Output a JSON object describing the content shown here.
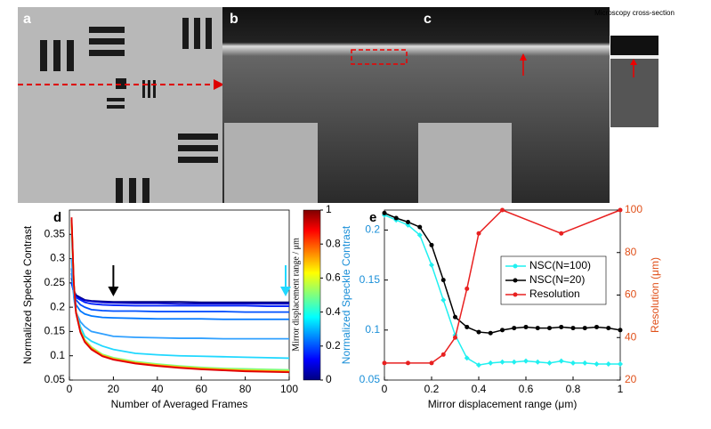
{
  "images": {
    "panels": [
      {
        "label": "a"
      },
      {
        "label": "b"
      },
      {
        "label": "c"
      }
    ],
    "inset_caption": "Microscopy cross-section"
  },
  "chart_data": [
    {
      "type": "line",
      "panel": "d",
      "xlabel": "Number of Averaged Frames",
      "ylabel": "Normalized Speckle Contrast",
      "xlim": [
        0,
        100
      ],
      "xticks": [
        0,
        20,
        40,
        60,
        80,
        100
      ],
      "ylim": [
        0.05,
        0.4
      ],
      "yticks": [
        0.05,
        0.1,
        0.15,
        0.2,
        0.25,
        0.3,
        0.35
      ],
      "x": [
        1,
        2,
        3,
        5,
        7,
        10,
        15,
        20,
        30,
        40,
        50,
        60,
        70,
        80,
        90,
        100
      ],
      "series": [
        {
          "color": "#00007f",
          "values": [
            0.26,
            0.235,
            0.225,
            0.22,
            0.215,
            0.213,
            0.212,
            0.211,
            0.211,
            0.211,
            0.211,
            0.21,
            0.21,
            0.21,
            0.21,
            0.21
          ]
        },
        {
          "color": "#0000c8",
          "values": [
            0.25,
            0.23,
            0.222,
            0.218,
            0.214,
            0.212,
            0.21,
            0.209,
            0.208,
            0.208,
            0.207,
            0.207,
            0.207,
            0.207,
            0.207,
            0.207
          ]
        },
        {
          "color": "#0020ff",
          "values": [
            0.25,
            0.23,
            0.22,
            0.215,
            0.21,
            0.207,
            0.205,
            0.204,
            0.203,
            0.203,
            0.203,
            0.203,
            0.203,
            0.203,
            0.202,
            0.202
          ]
        },
        {
          "color": "#0050ff",
          "values": [
            0.27,
            0.23,
            0.215,
            0.205,
            0.2,
            0.195,
            0.193,
            0.192,
            0.192,
            0.191,
            0.191,
            0.191,
            0.191,
            0.19,
            0.19,
            0.19
          ]
        },
        {
          "color": "#0078ff",
          "values": [
            0.28,
            0.225,
            0.205,
            0.192,
            0.186,
            0.182,
            0.179,
            0.178,
            0.177,
            0.176,
            0.176,
            0.176,
            0.175,
            0.175,
            0.175,
            0.175
          ]
        },
        {
          "color": "#30a0ff",
          "values": [
            0.3,
            0.22,
            0.19,
            0.17,
            0.16,
            0.15,
            0.145,
            0.14,
            0.138,
            0.137,
            0.136,
            0.136,
            0.135,
            0.135,
            0.135,
            0.135
          ]
        },
        {
          "color": "#20d8ff",
          "values": [
            0.35,
            0.24,
            0.19,
            0.16,
            0.14,
            0.13,
            0.12,
            0.113,
            0.105,
            0.102,
            0.1,
            0.099,
            0.098,
            0.097,
            0.096,
            0.095
          ]
        },
        {
          "color": "#7fff7f",
          "values": [
            0.37,
            0.25,
            0.19,
            0.152,
            0.133,
            0.118,
            0.103,
            0.096,
            0.088,
            0.083,
            0.079,
            0.076,
            0.074,
            0.073,
            0.072,
            0.071
          ]
        },
        {
          "color": "#ffd000",
          "values": [
            0.38,
            0.25,
            0.19,
            0.15,
            0.131,
            0.116,
            0.101,
            0.094,
            0.086,
            0.081,
            0.077,
            0.074,
            0.072,
            0.07,
            0.069,
            0.068
          ]
        },
        {
          "color": "#ff7000",
          "values": [
            0.38,
            0.25,
            0.19,
            0.15,
            0.13,
            0.115,
            0.1,
            0.093,
            0.085,
            0.08,
            0.076,
            0.073,
            0.071,
            0.069,
            0.068,
            0.067
          ]
        },
        {
          "color": "#e00000",
          "values": [
            0.385,
            0.25,
            0.188,
            0.148,
            0.128,
            0.113,
            0.099,
            0.092,
            0.084,
            0.079,
            0.075,
            0.072,
            0.07,
            0.068,
            0.067,
            0.066
          ]
        }
      ],
      "arrows": [
        {
          "x": 20,
          "color": "#000000"
        },
        {
          "x": 100,
          "color": "#20d8ff"
        }
      ],
      "colorbar": {
        "label": "Mirror displacement range / μm",
        "lim": [
          0,
          1
        ],
        "ticks": [
          0,
          0.2,
          0.4,
          0.6,
          0.8,
          1
        ]
      }
    },
    {
      "type": "line",
      "panel": "e",
      "xlabel": "Mirror displacement range (μm)",
      "ylabel": "Normalized Speckle Contrast",
      "y2label": "Resolution (μm)",
      "xlim": [
        0,
        1
      ],
      "xticks": [
        0,
        0.2,
        0.4,
        0.6,
        0.8,
        1
      ],
      "ylim": [
        0.05,
        0.22
      ],
      "yticks": [
        0.05,
        0.1,
        0.15,
        0.2
      ],
      "y2lim": [
        20,
        100
      ],
      "y2ticks": [
        20,
        40,
        60,
        80,
        100
      ],
      "legend": "upper right",
      "series": [
        {
          "name": "NSC(N=100)",
          "color": "#20f0f0",
          "marker": "diamond",
          "x": [
            0,
            0.05,
            0.1,
            0.15,
            0.2,
            0.25,
            0.3,
            0.35,
            0.4,
            0.45,
            0.5,
            0.55,
            0.6,
            0.65,
            0.7,
            0.75,
            0.8,
            0.85,
            0.9,
            0.95,
            1
          ],
          "values": [
            0.215,
            0.21,
            0.205,
            0.195,
            0.165,
            0.13,
            0.095,
            0.072,
            0.065,
            0.067,
            0.068,
            0.068,
            0.069,
            0.068,
            0.067,
            0.069,
            0.067,
            0.067,
            0.066,
            0.066,
            0.066
          ]
        },
        {
          "name": "NSC(N=20)",
          "color": "#000000",
          "marker": "circle",
          "x": [
            0,
            0.05,
            0.1,
            0.15,
            0.2,
            0.25,
            0.3,
            0.35,
            0.4,
            0.45,
            0.5,
            0.55,
            0.6,
            0.65,
            0.7,
            0.75,
            0.8,
            0.85,
            0.9,
            0.95,
            1
          ],
          "values": [
            0.217,
            0.212,
            0.208,
            0.203,
            0.185,
            0.15,
            0.113,
            0.103,
            0.098,
            0.097,
            0.1,
            0.102,
            0.103,
            0.102,
            0.102,
            0.103,
            0.102,
            0.102,
            0.103,
            0.102,
            0.1
          ]
        },
        {
          "name": "Resolution",
          "color": "#e82020",
          "marker": "circle",
          "axis": "y2",
          "x": [
            0,
            0.1,
            0.2,
            0.25,
            0.3,
            0.35,
            0.4,
            0.5,
            0.75,
            1
          ],
          "values": [
            28,
            28,
            28,
            32,
            40,
            63,
            89,
            100,
            89,
            100
          ]
        }
      ]
    }
  ]
}
